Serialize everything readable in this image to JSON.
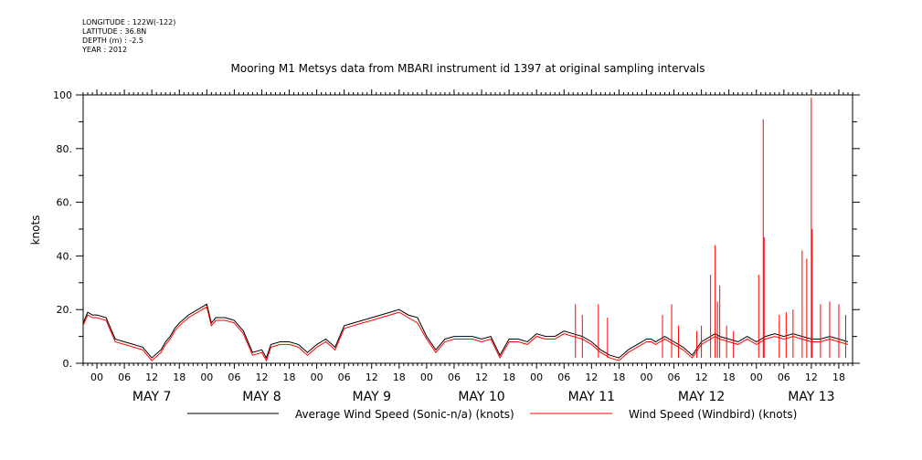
{
  "header": {
    "longitude": "LONGITUDE : 122W(-122)",
    "latitude": "LATITUDE : 36.8N",
    "depth": "DEPTH (m) : -2.5",
    "year": "YEAR : 2012"
  },
  "chart_data": {
    "type": "line",
    "title": "Mooring M1 Metsys data from MBARI instrument id 1397 at original sampling intervals",
    "ylabel": "knots",
    "xlabel": "",
    "ylim": [
      0,
      100
    ],
    "xlim_hours": [
      -3,
      165
    ],
    "yticks": [
      0,
      20,
      40,
      60,
      80,
      100
    ],
    "ytick_labels": [
      "0.",
      "20.",
      "40.",
      "60.",
      "80.",
      "100"
    ],
    "hour_ticks": [
      "00",
      "06",
      "12",
      "18",
      "00",
      "06",
      "12",
      "18",
      "00",
      "06",
      "12",
      "18",
      "00",
      "06",
      "12",
      "18",
      "00",
      "06",
      "12",
      "18",
      "00",
      "06",
      "12",
      "18",
      "00",
      "06",
      "12",
      "18"
    ],
    "day_labels": [
      "MAY  7",
      "MAY  8",
      "MAY  9",
      "MAY 10",
      "MAY 11",
      "MAY 12",
      "MAY 13"
    ],
    "legend": [
      {
        "name": "Average Wind Speed (Sonic-n/a) (knots)",
        "color": "#000000"
      },
      {
        "name": "Wind Speed (Windbird) (knots)",
        "color": "#ff0000"
      }
    ],
    "grid": false,
    "series": [
      {
        "name": "Average Wind Speed (Sonic-n/a) (knots)",
        "color": "#000000",
        "x": [
          -3,
          -2,
          -1,
          0,
          2,
          4,
          6,
          8,
          10,
          12,
          14,
          15,
          16,
          17,
          18,
          20,
          22,
          24,
          25,
          26,
          28,
          30,
          32,
          34,
          36,
          37,
          38,
          40,
          42,
          44,
          46,
          48,
          50,
          52,
          54,
          56,
          58,
          60,
          62,
          64,
          66,
          68,
          70,
          72,
          74,
          76,
          78,
          80,
          82,
          84,
          86,
          88,
          90,
          92,
          94,
          96,
          98,
          100,
          102,
          104,
          106,
          108,
          110,
          112,
          114,
          116,
          118,
          120,
          121,
          122,
          124,
          126,
          128,
          130,
          132,
          134,
          135,
          136,
          138,
          140,
          142,
          144,
          146,
          148,
          150,
          152,
          154,
          156,
          158,
          160,
          162,
          164
        ],
        "y": [
          15,
          19,
          18,
          18,
          17,
          9,
          8,
          7,
          6,
          2,
          5,
          8,
          10,
          13,
          15,
          18,
          20,
          22,
          15,
          17,
          17,
          16,
          12,
          4,
          5,
          2,
          7,
          8,
          8,
          7,
          4,
          7,
          9,
          6,
          14,
          15,
          16,
          17,
          18,
          19,
          20,
          18,
          17,
          10,
          5,
          9,
          10,
          10,
          10,
          9,
          10,
          3,
          9,
          9,
          8,
          11,
          10,
          10,
          12,
          11,
          10,
          8,
          5,
          3,
          2,
          5,
          7,
          9,
          9,
          8,
          10,
          8,
          6,
          3,
          8,
          10,
          11,
          10,
          9,
          8,
          10,
          8,
          10,
          11,
          10,
          11,
          10,
          9,
          9,
          10,
          9,
          8
        ]
      },
      {
        "name": "Wind Speed (Windbird) (knots)",
        "color": "#ff0000",
        "x": [
          -3,
          -2,
          -1,
          0,
          2,
          4,
          6,
          8,
          10,
          12,
          14,
          15,
          16,
          17,
          18,
          20,
          22,
          24,
          25,
          26,
          28,
          30,
          32,
          34,
          36,
          37,
          38,
          40,
          42,
          44,
          46,
          48,
          50,
          52,
          54,
          56,
          58,
          60,
          62,
          64,
          66,
          68,
          70,
          72,
          74,
          76,
          78,
          80,
          82,
          84,
          86,
          88,
          90,
          92,
          94,
          96,
          98,
          100,
          102,
          104,
          106,
          108,
          110,
          112,
          114,
          116,
          118,
          120,
          121,
          122,
          124,
          126,
          128,
          130,
          132,
          134,
          135,
          136,
          138,
          140,
          142,
          144,
          146,
          148,
          150,
          152,
          154,
          156,
          158,
          160,
          162,
          164
        ],
        "y": [
          14,
          18,
          17,
          17,
          16,
          8,
          7,
          6,
          5,
          1,
          4,
          7,
          9,
          12,
          14,
          17,
          19,
          21,
          14,
          16,
          16,
          15,
          11,
          3,
          4,
          1,
          6,
          7,
          7,
          6,
          3,
          6,
          8,
          5,
          13,
          14,
          15,
          16,
          17,
          18,
          19,
          17,
          15,
          9,
          4,
          8,
          9,
          9,
          9,
          8,
          9,
          2,
          8,
          8,
          7,
          10,
          9,
          9,
          11,
          10,
          9,
          7,
          4,
          2,
          1,
          4,
          6,
          8,
          8,
          7,
          9,
          7,
          5,
          2,
          7,
          9,
          10,
          9,
          8,
          7,
          9,
          7,
          9,
          10,
          9,
          10,
          9,
          8,
          8,
          9,
          8,
          7
        ],
        "spikes": [
          {
            "x": 104.5,
            "y": 22
          },
          {
            "x": 106,
            "y": 18
          },
          {
            "x": 109.5,
            "y": 22
          },
          {
            "x": 111.5,
            "y": 17
          },
          {
            "x": 123.5,
            "y": 18
          },
          {
            "x": 125.5,
            "y": 22
          },
          {
            "x": 127,
            "y": 14
          },
          {
            "x": 131,
            "y": 12
          },
          {
            "x": 132,
            "y": 14
          },
          {
            "x": 134,
            "y": 33
          },
          {
            "x": 135,
            "y": 44
          },
          {
            "x": 136,
            "y": 29
          },
          {
            "x": 135.5,
            "y": 23
          },
          {
            "x": 137.5,
            "y": 14
          },
          {
            "x": 139,
            "y": 12
          },
          {
            "x": 144.5,
            "y": 33
          },
          {
            "x": 145.5,
            "y": 91
          },
          {
            "x": 145.7,
            "y": 47
          },
          {
            "x": 149,
            "y": 18
          },
          {
            "x": 150.5,
            "y": 19
          },
          {
            "x": 152,
            "y": 20
          },
          {
            "x": 154,
            "y": 42
          },
          {
            "x": 155,
            "y": 39
          },
          {
            "x": 156,
            "y": 99
          },
          {
            "x": 156.2,
            "y": 50
          },
          {
            "x": 158,
            "y": 22
          },
          {
            "x": 160,
            "y": 23
          },
          {
            "x": 162,
            "y": 22
          },
          {
            "x": 163.5,
            "y": 18
          }
        ]
      }
    ]
  }
}
